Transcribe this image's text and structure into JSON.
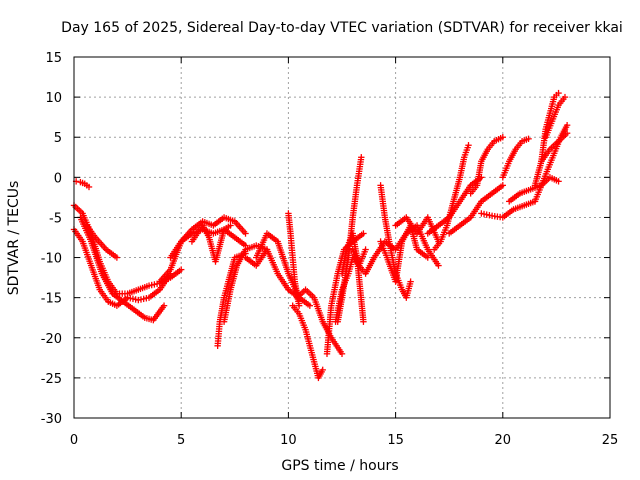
{
  "chart_data": {
    "type": "scatter",
    "title": "Day 165 of 2025, Sidereal Day-to-day VTEC variation (SDTVAR) for receiver kkai",
    "xlabel": "GPS time / hours",
    "ylabel": "SDTVAR / TECUs",
    "xlim": [
      0,
      25
    ],
    "ylim": [
      -30,
      15
    ],
    "xticks": [
      0,
      5,
      10,
      15,
      20,
      25
    ],
    "yticks": [
      -30,
      -25,
      -20,
      -15,
      -10,
      -5,
      0,
      5,
      10,
      15
    ],
    "xtick_labels": [
      "0",
      "5",
      "10",
      "15",
      "20",
      "25"
    ],
    "ytick_labels": [
      "-30",
      "-25",
      "-20",
      "-15",
      "-10",
      "-5",
      "0",
      "5",
      "10",
      "15"
    ],
    "grid": true,
    "marker": "plus",
    "color": "#ff0000",
    "series": [
      {
        "name": "s1",
        "x": [
          0.1,
          0.3,
          0.5,
          0.7
        ],
        "y": [
          -0.5,
          -0.6,
          -0.8,
          -1.2
        ]
      },
      {
        "name": "s2",
        "x": [
          0,
          0.4,
          0.8,
          1.2,
          1.6,
          2.0,
          2.5,
          3.0,
          3.5,
          4.0,
          4.5,
          5.0
        ],
        "y": [
          -3.5,
          -4.5,
          -7,
          -10.5,
          -13,
          -14.5,
          -14.5,
          -14,
          -13.5,
          -13.2,
          -12.5,
          -11.5
        ]
      },
      {
        "name": "s3",
        "x": [
          0,
          0.4,
          0.8,
          1.2,
          1.6,
          2.0,
          2.5,
          3.0,
          3.5,
          4.0,
          4.5
        ],
        "y": [
          -6.5,
          -8,
          -11,
          -14,
          -15.5,
          -16,
          -15,
          -15.3,
          -15,
          -14,
          -12
        ]
      },
      {
        "name": "s4",
        "x": [
          0.3,
          0.8,
          1.3,
          1.8,
          2.3,
          2.8,
          3.3,
          3.7,
          4.2
        ],
        "y": [
          -5,
          -8,
          -12,
          -14.5,
          -15.5,
          -16.5,
          -17.5,
          -17.8,
          -16
        ]
      },
      {
        "name": "s5",
        "x": [
          0.6,
          1.0,
          1.5,
          2.0
        ],
        "y": [
          -6,
          -7.5,
          -9,
          -10
        ]
      },
      {
        "name": "s6",
        "x": [
          4.0,
          4.5,
          5.0,
          5.5,
          6.0,
          6.5,
          7.0,
          7.5,
          8.0
        ],
        "y": [
          -13,
          -11.5,
          -8,
          -6.5,
          -5.5,
          -6,
          -5,
          -5.5,
          -7
        ]
      },
      {
        "name": "s7",
        "x": [
          4.5,
          5.0,
          5.5,
          6.0,
          6.5,
          7.0,
          7.5,
          8.0
        ],
        "y": [
          -10,
          -8,
          -7,
          -6.5,
          -7,
          -6.5,
          -7.5,
          -8.5
        ]
      },
      {
        "name": "s8",
        "x": [
          5.5,
          6.0,
          6.3,
          6.6,
          7.0,
          7.3
        ],
        "y": [
          -8,
          -6,
          -7.5,
          -10.5,
          -6.5,
          -6
        ]
      },
      {
        "name": "s9",
        "x": [
          6.7,
          6.8,
          7.0,
          7.2,
          7.5,
          8.0
        ],
        "y": [
          -21,
          -18,
          -15,
          -13,
          -10,
          -9.5
        ]
      },
      {
        "name": "s10",
        "x": [
          7.0,
          7.3,
          7.6,
          8.0,
          8.5,
          9.0
        ],
        "y": [
          -18,
          -14,
          -11,
          -9,
          -8.5,
          -9
        ]
      },
      {
        "name": "s11",
        "x": [
          8.5,
          9.0,
          9.5,
          10.0,
          10.5,
          11.0
        ],
        "y": [
          -10,
          -7,
          -8,
          -12,
          -15,
          -16
        ]
      },
      {
        "name": "s12",
        "x": [
          8.0,
          8.5,
          9.0,
          9.5,
          10.0,
          10.5
        ],
        "y": [
          -10,
          -11,
          -9,
          -12,
          -14,
          -15
        ]
      },
      {
        "name": "s13",
        "x": [
          10.0,
          10.1,
          10.2,
          10.3,
          10.5
        ],
        "y": [
          -4.5,
          -7,
          -10,
          -13,
          -16
        ]
      },
      {
        "name": "s14",
        "x": [
          10.2,
          10.5,
          10.8,
          11.0,
          11.2,
          11.4,
          11.6
        ],
        "y": [
          -16,
          -17,
          -19,
          -21,
          -23,
          -25,
          -24
        ]
      },
      {
        "name": "s15",
        "x": [
          10.4,
          10.8,
          11.2,
          11.6,
          12.0,
          12.5
        ],
        "y": [
          -15,
          -14,
          -15,
          -18,
          -20,
          -22
        ]
      },
      {
        "name": "s16",
        "x": [
          11.8,
          12.0,
          12.3,
          12.6,
          13.0,
          13.5
        ],
        "y": [
          -22,
          -16,
          -12,
          -9,
          -8,
          -7
        ]
      },
      {
        "name": "s17",
        "x": [
          12.2,
          12.5,
          12.8,
          13.0,
          13.3,
          13.6
        ],
        "y": [
          -18,
          -14,
          -12,
          -10,
          -11,
          -9
        ]
      },
      {
        "name": "s18",
        "x": [
          12.3,
          12.5,
          12.8,
          13.0,
          13.2,
          13.4
        ],
        "y": [
          -18,
          -15,
          -10,
          -5,
          -1,
          2.5
        ]
      },
      {
        "name": "s19",
        "x": [
          12.5,
          12.7,
          13.0,
          13.2,
          13.5
        ],
        "y": [
          -12,
          -9,
          -7,
          -10,
          -18
        ]
      },
      {
        "name": "s20",
        "x": [
          13.0,
          13.3,
          13.6,
          14.0,
          14.5,
          15.0,
          15.5,
          16.0,
          16.5,
          17.0
        ],
        "y": [
          -9,
          -11,
          -12,
          -10,
          -8,
          -9,
          -7,
          -6,
          -9,
          -11
        ]
      },
      {
        "name": "s21",
        "x": [
          14.3,
          14.6,
          15.0,
          15.3,
          15.7,
          16.0,
          16.5
        ],
        "y": [
          -8,
          -10,
          -13,
          -8,
          -6,
          -9,
          -10
        ]
      },
      {
        "name": "s22",
        "x": [
          14.3,
          14.5,
          14.7,
          15.0,
          15.3,
          15.5,
          15.7
        ],
        "y": [
          -1,
          -5,
          -8,
          -12,
          -14,
          -15,
          -13
        ]
      },
      {
        "name": "s23",
        "x": [
          15.0,
          15.5,
          16.0,
          16.5,
          17.0
        ],
        "y": [
          -6,
          -5,
          -7,
          -5,
          -8
        ]
      },
      {
        "name": "s24",
        "x": [
          16.5,
          17.0,
          17.5,
          18.0,
          18.5,
          19.0
        ],
        "y": [
          -7,
          -6,
          -5,
          -3,
          -1,
          0
        ]
      },
      {
        "name": "s25",
        "x": [
          16.8,
          17.1,
          17.4,
          17.7,
          18.0,
          18.2,
          18.4
        ],
        "y": [
          -9,
          -8,
          -6,
          -3,
          0,
          2.5,
          4
        ]
      },
      {
        "name": "s26",
        "x": [
          17.5,
          18.0,
          18.5,
          19.0,
          19.5,
          20.0
        ],
        "y": [
          -7,
          -6,
          -5,
          -3,
          -2,
          -1
        ]
      },
      {
        "name": "s27",
        "x": [
          18.5,
          18.8,
          19.0,
          19.3,
          19.6,
          20.0
        ],
        "y": [
          -2,
          -1,
          2,
          3.5,
          4.5,
          5
        ]
      },
      {
        "name": "s28",
        "x": [
          20.0,
          20.3,
          20.6,
          20.9,
          21.2
        ],
        "y": [
          0,
          2,
          3.5,
          4.5,
          4.8
        ]
      },
      {
        "name": "s29",
        "x": [
          19.0,
          19.5,
          20.0,
          20.5,
          21.0,
          21.5
        ],
        "y": [
          -4.5,
          -4.8,
          -5,
          -4,
          -3.5,
          -3
        ]
      },
      {
        "name": "s30",
        "x": [
          20.3,
          20.8,
          21.3,
          21.8,
          22.2,
          22.6
        ],
        "y": [
          -3,
          -2,
          -1.5,
          -1,
          0,
          -0.5
        ]
      },
      {
        "name": "s31",
        "x": [
          21.5,
          21.8,
          22.1,
          22.4,
          22.7,
          23.0
        ],
        "y": [
          -3,
          -1,
          1,
          3,
          5,
          6.5
        ]
      },
      {
        "name": "s32",
        "x": [
          21.5,
          21.8,
          22.0,
          22.2,
          22.4,
          22.6
        ],
        "y": [
          -1,
          2,
          6,
          8,
          10,
          10.5
        ]
      },
      {
        "name": "s33",
        "x": [
          22.0,
          22.3,
          22.6,
          22.9
        ],
        "y": [
          5,
          7,
          9,
          10
        ]
      },
      {
        "name": "s34",
        "x": [
          21.8,
          22.2,
          22.6,
          23.0
        ],
        "y": [
          2,
          3.5,
          4.5,
          5.5
        ]
      }
    ]
  }
}
